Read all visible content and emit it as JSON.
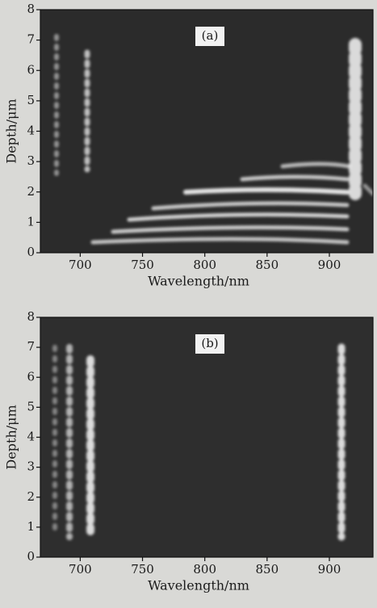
{
  "chart_data": [
    {
      "type": "heatmap",
      "annotation": "(a)",
      "xlabel": "Wavelength/nm",
      "ylabel": "Depth/μm",
      "xlim": [
        668,
        935
      ],
      "ylim": [
        0,
        8
      ],
      "xticks": [
        700,
        750,
        800,
        850,
        900
      ],
      "yticks": [
        0,
        1,
        2,
        3,
        4,
        5,
        6,
        7,
        8
      ]
    },
    {
      "type": "heatmap",
      "annotation": "(b)",
      "xlabel": "Wavelength/nm",
      "ylabel": "Depth/μm",
      "xlim": [
        668,
        935
      ],
      "ylim": [
        0,
        8
      ],
      "xticks": [
        700,
        750,
        800,
        850,
        900
      ],
      "yticks": [
        0,
        1,
        2,
        3,
        4,
        5,
        6,
        7,
        8
      ]
    }
  ]
}
